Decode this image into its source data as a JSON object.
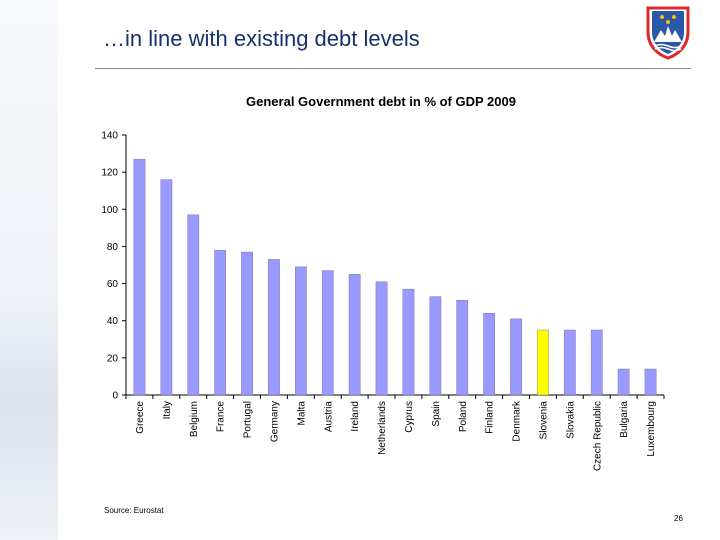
{
  "slide": {
    "title": "…in line with existing debt levels",
    "source": "Source: Eurostat",
    "page_number": "26"
  },
  "colors": {
    "bar": "#9999ff",
    "highlight": "#ffff00",
    "title_text": "#16326e",
    "emblem_shield": "#2b57a8",
    "emblem_red": "#d92b2b"
  },
  "chart_data": {
    "type": "bar",
    "title": "General Government debt in % of GDP 2009",
    "categories": [
      "Greece",
      "Italy",
      "Belgium",
      "France",
      "Portugal",
      "Germany",
      "Malta",
      "Austria",
      "Ireland",
      "Netherlands",
      "Cyprus",
      "Spain",
      "Poland",
      "Finland",
      "Denmark",
      "Slovenia",
      "Slovakia",
      "Czech Republic",
      "Bulgaria",
      "Luxembourg"
    ],
    "values": [
      127,
      116,
      97,
      78,
      77,
      73,
      69,
      67,
      65,
      61,
      57,
      53,
      51,
      44,
      41,
      35,
      35,
      35,
      14,
      14
    ],
    "highlight": "Slovenia",
    "ylim": [
      0,
      140
    ],
    "yticks": [
      0,
      20,
      40,
      60,
      80,
      100,
      120,
      140
    ],
    "xlabel": "",
    "ylabel": "",
    "grid": false,
    "legend": "none"
  }
}
